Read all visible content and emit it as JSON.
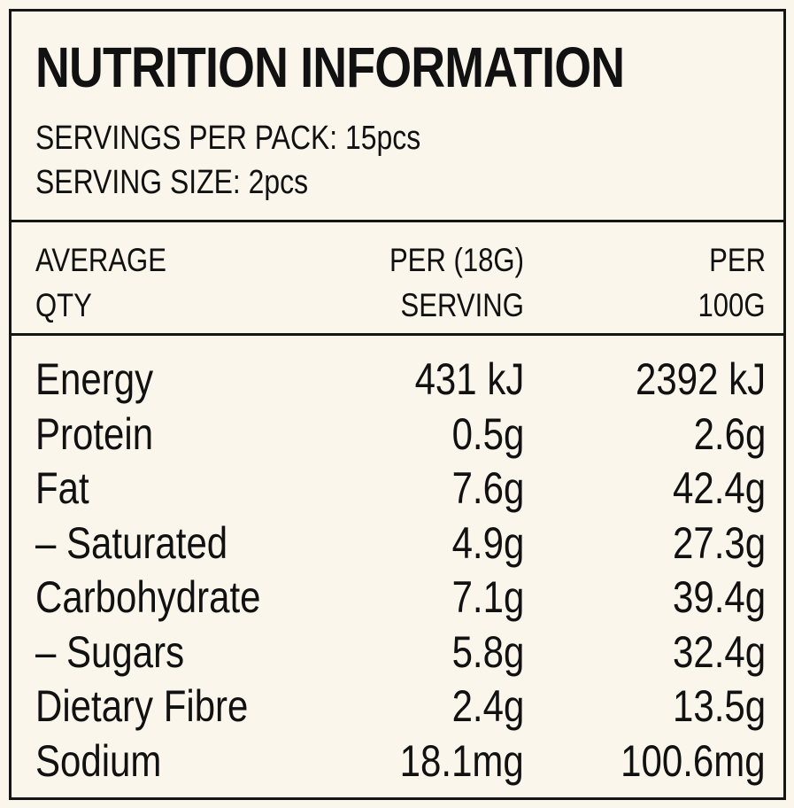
{
  "title": "NUTRITION INFORMATION",
  "servings_per_pack": "SERVINGS PER PACK: 15pcs",
  "serving_size": "SERVING SIZE: 2pcs",
  "header": {
    "col1": [
      "AVERAGE",
      "QTY"
    ],
    "col2": [
      "PER (18G)",
      "SERVING"
    ],
    "col3": [
      "PER",
      "100G"
    ]
  },
  "rows": [
    {
      "label": "Energy",
      "per_serving": "431 kJ",
      "per_100g": "2392 kJ"
    },
    {
      "label": "Protein",
      "per_serving": "0.5g",
      "per_100g": "2.6g"
    },
    {
      "label": "Fat",
      "per_serving": "7.6g",
      "per_100g": "42.4g"
    },
    {
      "label": "– Saturated",
      "per_serving": "4.9g",
      "per_100g": "27.3g"
    },
    {
      "label": "Carbohydrate",
      "per_serving": "7.1g",
      "per_100g": "39.4g"
    },
    {
      "label": "– Sugars",
      "per_serving": "5.8g",
      "per_100g": "32.4g"
    },
    {
      "label": "Dietary Fibre",
      "per_serving": "2.4g",
      "per_100g": "13.5g"
    },
    {
      "label": "Sodium",
      "per_serving": "18.1mg",
      "per_100g": "100.6mg"
    }
  ]
}
